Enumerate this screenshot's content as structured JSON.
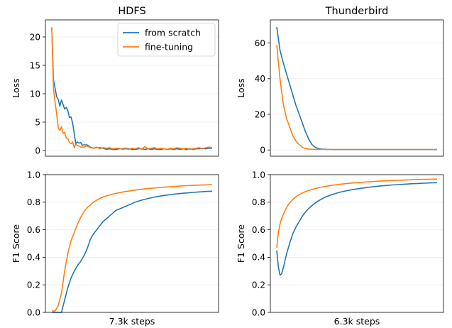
{
  "colors": {
    "from_scratch": "#1f77b4",
    "fine_tuning": "#ff7f0e"
  },
  "legend": [
    "from scratch",
    "fine-tuning"
  ],
  "chart_data": [
    {
      "type": "line",
      "title": "HDFS",
      "xlabel": "",
      "ylabel": "Loss",
      "x": [
        0,
        1,
        2,
        3,
        4,
        5,
        6,
        7,
        8,
        9,
        10,
        11,
        12,
        13,
        14,
        15,
        16,
        17,
        18,
        19,
        20,
        22,
        24,
        26,
        28,
        30,
        32,
        34,
        36,
        38,
        40,
        42,
        44,
        46,
        48,
        50,
        52,
        54,
        56,
        58,
        60,
        62,
        64,
        66,
        68,
        70,
        72,
        74,
        76,
        78,
        80,
        82,
        84,
        86,
        88,
        90,
        92,
        94,
        96,
        98,
        100
      ],
      "xlim": [
        -4,
        104
      ],
      "ylim": [
        -1,
        23
      ],
      "yticks": [
        0,
        5,
        10,
        15,
        20
      ],
      "grid": "horizontal",
      "legend_position": "upper-right",
      "series": [
        {
          "name": "from scratch",
          "values": [
            21.6,
            12.5,
            11.0,
            9.5,
            9.0,
            7.8,
            8.9,
            8.1,
            7.3,
            7.6,
            7.0,
            5.8,
            5.9,
            4.8,
            2.9,
            1.2,
            1.5,
            1.3,
            1.4,
            0.9,
            1.0,
            1.0,
            0.6,
            0.4,
            0.5,
            0.5,
            0.4,
            0.2,
            0.3,
            0.2,
            0.2,
            0.3,
            0.3,
            0.4,
            0.3,
            0.2,
            0.2,
            0.3,
            0.3,
            0.2,
            0.3,
            0.2,
            0.3,
            0.2,
            0.2,
            0.3,
            0.2,
            0.3,
            0.2,
            0.3,
            0.2,
            0.3,
            0.2,
            0.3,
            0.2,
            0.3,
            0.3,
            0.4,
            0.3,
            0.4,
            0.4
          ]
        },
        {
          "name": "fine-tuning",
          "values": [
            21.7,
            11.0,
            8.5,
            6.5,
            4.0,
            3.5,
            4.2,
            3.0,
            3.2,
            2.2,
            2.1,
            1.4,
            1.2,
            1.5,
            0.5,
            1.1,
            0.9,
            0.8,
            0.6,
            0.6,
            0.6,
            0.8,
            0.5,
            0.4,
            0.6,
            0.3,
            0.5,
            0.4,
            0.5,
            0.3,
            0.4,
            0.4,
            0.2,
            0.3,
            0.2,
            0.4,
            0.3,
            0.5,
            0.2,
            0.7,
            0.3,
            0.4,
            0.5,
            0.3,
            0.4,
            0.3,
            0.2,
            0.4,
            0.3,
            0.5,
            0.4,
            0.3,
            0.4,
            0.2,
            0.3,
            0.4,
            0.5,
            0.3,
            0.5,
            0.6,
            0.5
          ]
        }
      ]
    },
    {
      "type": "line",
      "title": "Thunderbird",
      "xlabel": "",
      "ylabel": "Loss",
      "x": [
        0,
        2,
        4,
        6,
        8,
        10,
        12,
        14,
        16,
        18,
        20,
        22,
        24,
        26,
        28,
        30,
        32,
        34,
        36,
        38,
        40,
        44,
        48,
        52,
        56,
        60,
        64,
        68,
        72,
        76,
        80,
        84,
        88,
        92,
        96,
        100
      ],
      "xlim": [
        -4,
        104
      ],
      "ylim": [
        -3.5,
        73
      ],
      "yticks": [
        0,
        20,
        40,
        60
      ],
      "grid": "horizontal",
      "series": [
        {
          "name": "from scratch",
          "values": [
            69,
            56,
            49,
            43,
            37,
            31,
            25,
            20,
            15,
            10,
            6,
            3,
            1.5,
            0.8,
            0.5,
            0.4,
            0.3,
            0.3,
            0.2,
            0.2,
            0.2,
            0.2,
            0.2,
            0.2,
            0.2,
            0.2,
            0.2,
            0.2,
            0.2,
            0.2,
            0.2,
            0.2,
            0.2,
            0.2,
            0.2,
            0.2
          ]
        },
        {
          "name": "fine-tuning",
          "values": [
            59,
            40,
            26,
            18,
            13,
            8,
            5,
            3,
            1.5,
            0.8,
            0.5,
            0.4,
            0.3,
            0.3,
            0.3,
            0.3,
            0.3,
            0.3,
            0.3,
            0.3,
            0.3,
            0.3,
            0.3,
            0.3,
            0.3,
            0.3,
            0.3,
            0.3,
            0.3,
            0.3,
            0.3,
            0.3,
            0.3,
            0.3,
            0.3,
            0.3
          ]
        }
      ]
    },
    {
      "type": "line",
      "title": "",
      "xlabel": "7.3k steps",
      "ylabel": "F1 Score",
      "x": [
        0,
        2,
        4,
        6,
        8,
        10,
        12,
        14,
        16,
        18,
        20,
        22,
        24,
        26,
        28,
        30,
        32,
        34,
        36,
        38,
        40,
        44,
        48,
        52,
        56,
        60,
        64,
        68,
        72,
        76,
        80,
        84,
        88,
        92,
        96,
        100
      ],
      "xlim": [
        -4,
        104
      ],
      "ylim": [
        0,
        1
      ],
      "yticks": [
        0.0,
        0.2,
        0.4,
        0.6,
        0.8,
        1.0
      ],
      "grid": "horizontal",
      "series": [
        {
          "name": "from scratch",
          "values": [
            0.0,
            0.0,
            0.0,
            0.0,
            0.09,
            0.18,
            0.25,
            0.3,
            0.34,
            0.37,
            0.41,
            0.46,
            0.53,
            0.57,
            0.6,
            0.63,
            0.66,
            0.68,
            0.7,
            0.72,
            0.74,
            0.76,
            0.78,
            0.8,
            0.815,
            0.827,
            0.837,
            0.845,
            0.852,
            0.858,
            0.863,
            0.867,
            0.871,
            0.875,
            0.878,
            0.88
          ]
        },
        {
          "name": "fine-tuning",
          "values": [
            0.01,
            0.01,
            0.05,
            0.14,
            0.3,
            0.43,
            0.52,
            0.58,
            0.64,
            0.69,
            0.73,
            0.76,
            0.78,
            0.8,
            0.815,
            0.828,
            0.838,
            0.846,
            0.853,
            0.859,
            0.864,
            0.873,
            0.881,
            0.888,
            0.894,
            0.899,
            0.903,
            0.907,
            0.911,
            0.914,
            0.917,
            0.92,
            0.922,
            0.924,
            0.926,
            0.928
          ]
        }
      ]
    },
    {
      "type": "line",
      "title": "",
      "xlabel": "6.3k steps",
      "ylabel": "F1 Score",
      "x": [
        0,
        1,
        2,
        3,
        4,
        6,
        8,
        10,
        12,
        14,
        16,
        18,
        20,
        22,
        24,
        26,
        28,
        30,
        32,
        34,
        36,
        38,
        40,
        44,
        48,
        52,
        56,
        60,
        64,
        68,
        72,
        76,
        80,
        84,
        88,
        92,
        96,
        100
      ],
      "xlim": [
        -4,
        104
      ],
      "ylim": [
        0,
        1
      ],
      "yticks": [
        0.0,
        0.2,
        0.4,
        0.6,
        0.8,
        1.0
      ],
      "grid": "horizontal",
      "series": [
        {
          "name": "from scratch",
          "values": [
            0.45,
            0.33,
            0.27,
            0.28,
            0.32,
            0.42,
            0.5,
            0.57,
            0.62,
            0.66,
            0.7,
            0.73,
            0.755,
            0.775,
            0.795,
            0.81,
            0.823,
            0.835,
            0.845,
            0.853,
            0.861,
            0.868,
            0.874,
            0.884,
            0.893,
            0.9,
            0.906,
            0.912,
            0.917,
            0.921,
            0.925,
            0.928,
            0.931,
            0.934,
            0.936,
            0.938,
            0.94,
            0.942
          ]
        },
        {
          "name": "fine-tuning",
          "values": [
            0.47,
            0.58,
            0.64,
            0.68,
            0.71,
            0.76,
            0.795,
            0.82,
            0.84,
            0.855,
            0.867,
            0.877,
            0.886,
            0.893,
            0.899,
            0.905,
            0.91,
            0.914,
            0.918,
            0.922,
            0.925,
            0.928,
            0.931,
            0.936,
            0.94,
            0.944,
            0.947,
            0.95,
            0.953,
            0.955,
            0.957,
            0.959,
            0.961,
            0.963,
            0.965,
            0.966,
            0.967,
            0.968
          ]
        }
      ]
    }
  ]
}
